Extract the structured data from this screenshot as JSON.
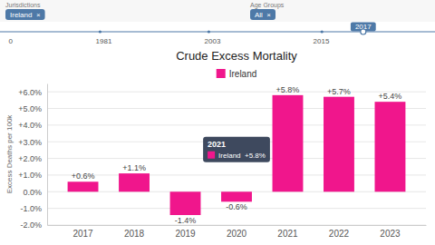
{
  "chart_data": {
    "type": "bar",
    "title": "Crude Excess Mortality",
    "ylabel": "Excess Deaths per 100k",
    "categories": [
      "2017",
      "2018",
      "2019",
      "2020",
      "2021",
      "2022",
      "2023"
    ],
    "series": [
      {
        "name": "Ireland",
        "color": "#f0168c",
        "values": [
          0.6,
          1.1,
          -1.4,
          -0.6,
          5.8,
          5.7,
          5.4
        ],
        "value_labels": [
          "+0.6%",
          "+1.1%",
          "-1.4%",
          "-0.6%",
          "+5.8%",
          "+5.7%",
          "+5.4%"
        ]
      }
    ],
    "ylim": [
      -2.0,
      6.5
    ],
    "yticks": [
      {
        "value": -2.0,
        "label": "-2.0%"
      },
      {
        "value": -1.0,
        "label": "-1.0%"
      },
      {
        "value": 0.0,
        "label": "0.0%"
      },
      {
        "value": 1.0,
        "label": "+1.0%"
      },
      {
        "value": 2.0,
        "label": "+2.0%"
      },
      {
        "value": 3.0,
        "label": "+3.0%"
      },
      {
        "value": 4.0,
        "label": "+4.0%"
      },
      {
        "value": 5.0,
        "label": "+5.0%"
      },
      {
        "value": 6.0,
        "label": "+6.0%"
      }
    ],
    "grid": true,
    "legend": "top",
    "data_labels": true,
    "annotations": [
      "Jurisdictions",
      "Ireland  ×",
      "Age Groups",
      "All  ×",
      "2017",
      "0",
      "1981",
      "2003",
      "2015",
      "2021",
      "Ireland  +5.8%"
    ]
  }
}
